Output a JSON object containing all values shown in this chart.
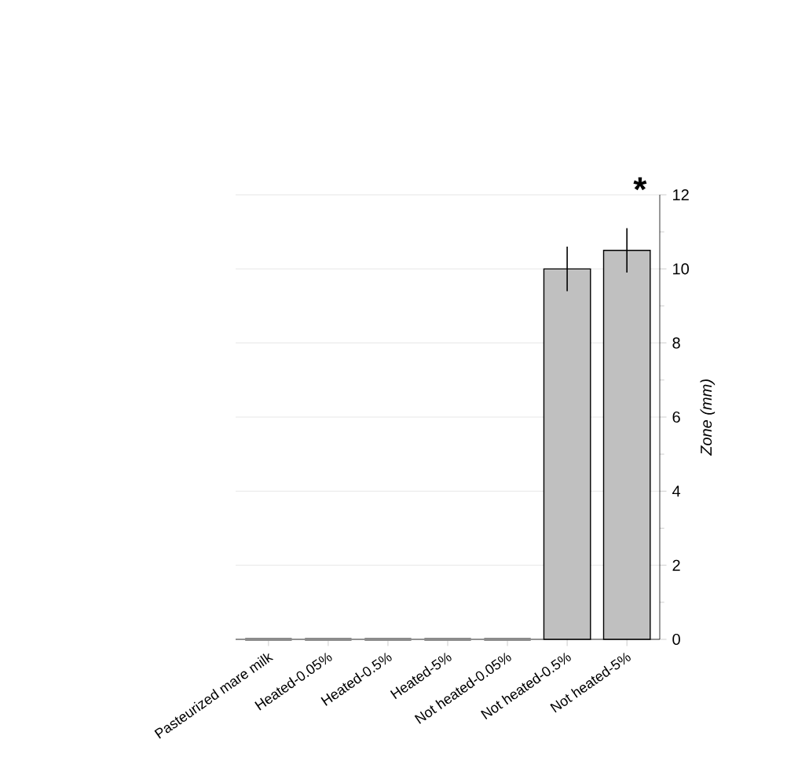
{
  "chart_data": {
    "type": "bar",
    "categories": [
      "Pasteurized mare milk",
      "Heated-0.05%",
      "Heated-0.5%",
      "Heated-5%",
      "Not heated-0.05%",
      "Not heated-0.5%",
      "Not heated-5%"
    ],
    "values": [
      0,
      0,
      0,
      0,
      0,
      10.0,
      10.5
    ],
    "errors": [
      null,
      null,
      null,
      null,
      null,
      0.6,
      0.6
    ],
    "colors": [
      "#8c8c8c",
      "#8c8c8c",
      "#8c8c8c",
      "#8c8c8c",
      "#8c8c8c",
      "#c0c0c0",
      "#c0c0c0"
    ],
    "ylabel": "Zone (mm)",
    "ylim": [
      0,
      12
    ],
    "yticks": [
      0,
      2,
      4,
      6,
      8,
      10,
      12
    ],
    "grid": "y",
    "annotations": [
      "*"
    ]
  }
}
